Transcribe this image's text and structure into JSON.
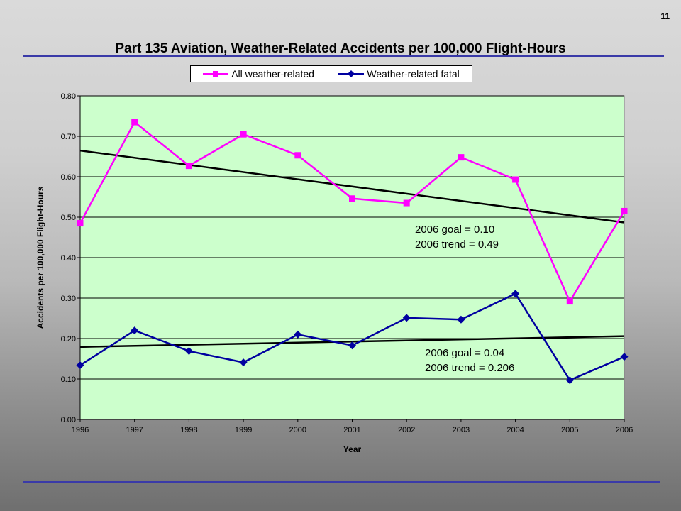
{
  "slide": {
    "number": "11"
  },
  "chart_data": {
    "type": "line",
    "title": "Part 135 Aviation, Weather-Related Accidents per 100,000 Flight-Hours",
    "xlabel": "Year",
    "ylabel": "Accidents per 100,000 Flight-Hours",
    "ylim": [
      0,
      0.8
    ],
    "yticks": [
      "0.00",
      "0.10",
      "0.20",
      "0.30",
      "0.40",
      "0.50",
      "0.60",
      "0.70",
      "0.80"
    ],
    "x": [
      "1996",
      "1997",
      "1998",
      "1999",
      "2000",
      "2001",
      "2002",
      "2003",
      "2004",
      "2005",
      "2006"
    ],
    "grid": true,
    "legend": "top-center",
    "series": [
      {
        "name": "All weather-related",
        "color": "#ff00ff",
        "marker": "square",
        "values": [
          0.485,
          0.735,
          0.627,
          0.705,
          0.653,
          0.546,
          0.535,
          0.648,
          0.593,
          0.292,
          0.515
        ]
      },
      {
        "name": "Weather-related fatal",
        "color": "#0000a0",
        "marker": "diamond",
        "values": [
          0.134,
          0.22,
          0.169,
          0.141,
          0.21,
          0.183,
          0.251,
          0.247,
          0.311,
          0.097,
          0.155
        ]
      }
    ],
    "trendline_color": "#000000",
    "annotations": [
      {
        "lines": [
          "2006 goal = 0.10",
          "2006 trend = 0.49"
        ]
      },
      {
        "lines": [
          "2006 goal = 0.04",
          "2006 trend = 0.206"
        ]
      }
    ],
    "plot_bg": "#ccffcc"
  }
}
